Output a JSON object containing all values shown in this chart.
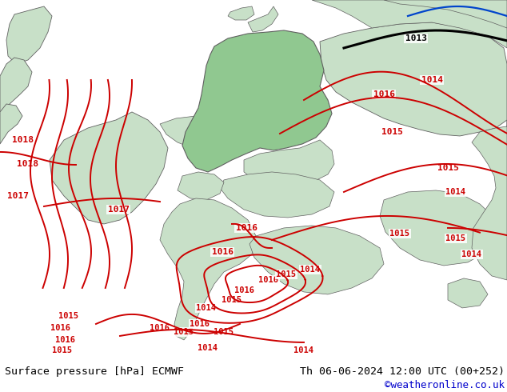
{
  "title_left": "Surface pressure [hPa] ECMWF",
  "title_right": "Th 06-06-2024 12:00 UTC (00+252)",
  "credit": "©weatheronline.co.uk",
  "ocean_color": "#d0ddd0",
  "land_outer_color": "#c8e0c8",
  "germany_color": "#90c890",
  "border_color": "#606060",
  "red_contour": "#cc0000",
  "black_contour": "#000000",
  "blue_contour": "#0044cc",
  "bottom_bar_color": "#c8e0c8",
  "figsize": [
    6.34,
    4.9
  ],
  "dpi": 100
}
